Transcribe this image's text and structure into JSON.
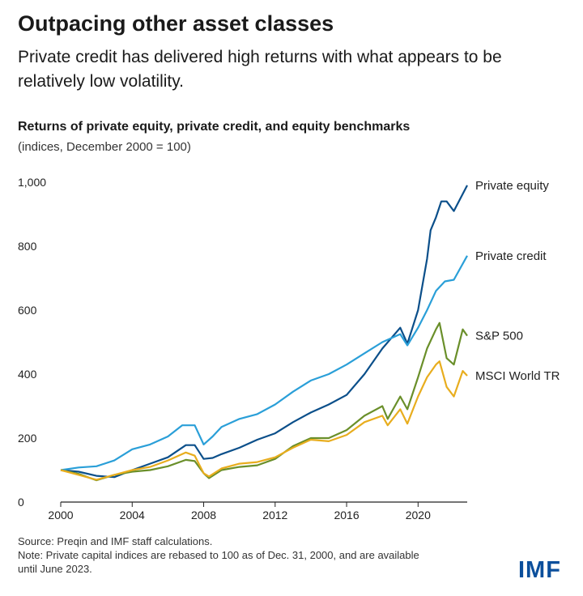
{
  "header": {
    "title": "Outpacing other asset classes",
    "subtitle": "Private credit has delivered high returns with what appears to be relatively low volatility."
  },
  "footer": {
    "source": "Source: Preqin and IMF staff calculations.",
    "note_line1": "Note: Private capital indices are rebased to 100 as of Dec. 31, 2000, and are available",
    "note_line2": "until June 2023.",
    "logo": "IMF"
  },
  "chart_data": {
    "type": "line",
    "title": "Returns of private equity, private credit, and equity benchmarks",
    "subtitle": "(indices, December 2000 = 100)",
    "xlim": [
      2000,
      2022.75
    ],
    "ylim": [
      0,
      1000
    ],
    "x_ticks": [
      "2000",
      "2004",
      "2008",
      "2012",
      "2016",
      "2020"
    ],
    "y_ticks": [
      "0",
      "200",
      "400",
      "600",
      "800",
      "1,000"
    ],
    "grid": false,
    "legend": "inline labels at right end of lines",
    "series": [
      {
        "name": "Private equity",
        "color": "#0b4f8a",
        "points": [
          [
            2000,
            100
          ],
          [
            2001,
            95
          ],
          [
            2002,
            82
          ],
          [
            2003,
            78
          ],
          [
            2004,
            100
          ],
          [
            2005,
            120
          ],
          [
            2006,
            140
          ],
          [
            2007,
            178
          ],
          [
            2007.5,
            178
          ],
          [
            2008,
            135
          ],
          [
            2008.5,
            138
          ],
          [
            2009,
            150
          ],
          [
            2010,
            170
          ],
          [
            2011,
            195
          ],
          [
            2012,
            215
          ],
          [
            2013,
            250
          ],
          [
            2014,
            280
          ],
          [
            2015,
            305
          ],
          [
            2016,
            335
          ],
          [
            2017,
            400
          ],
          [
            2018,
            480
          ],
          [
            2019,
            545
          ],
          [
            2019.4,
            495
          ],
          [
            2020,
            600
          ],
          [
            2020.5,
            760
          ],
          [
            2020.7,
            850
          ],
          [
            2021,
            890
          ],
          [
            2021.3,
            940
          ],
          [
            2021.6,
            940
          ],
          [
            2022,
            910
          ],
          [
            2022.75,
            990
          ]
        ]
      },
      {
        "name": "Private credit",
        "color": "#2a9fd8",
        "points": [
          [
            2000,
            100
          ],
          [
            2001,
            108
          ],
          [
            2002,
            112
          ],
          [
            2003,
            130
          ],
          [
            2004,
            165
          ],
          [
            2005,
            180
          ],
          [
            2006,
            205
          ],
          [
            2006.8,
            240
          ],
          [
            2007.5,
            240
          ],
          [
            2008,
            180
          ],
          [
            2008.5,
            205
          ],
          [
            2009,
            235
          ],
          [
            2010,
            260
          ],
          [
            2011,
            275
          ],
          [
            2012,
            305
          ],
          [
            2013,
            345
          ],
          [
            2014,
            380
          ],
          [
            2015,
            400
          ],
          [
            2016,
            430
          ],
          [
            2017,
            465
          ],
          [
            2018,
            500
          ],
          [
            2019,
            525
          ],
          [
            2019.4,
            490
          ],
          [
            2020,
            545
          ],
          [
            2020.5,
            600
          ],
          [
            2021,
            660
          ],
          [
            2021.5,
            690
          ],
          [
            2022,
            695
          ],
          [
            2022.75,
            770
          ]
        ]
      },
      {
        "name": "S&P 500",
        "color": "#6a8f2a",
        "points": [
          [
            2000,
            100
          ],
          [
            2001,
            88
          ],
          [
            2002,
            68
          ],
          [
            2003,
            85
          ],
          [
            2004,
            95
          ],
          [
            2005,
            100
          ],
          [
            2006,
            112
          ],
          [
            2007,
            132
          ],
          [
            2007.5,
            128
          ],
          [
            2008,
            90
          ],
          [
            2008.3,
            75
          ],
          [
            2009,
            100
          ],
          [
            2010,
            110
          ],
          [
            2011,
            115
          ],
          [
            2012,
            135
          ],
          [
            2013,
            175
          ],
          [
            2014,
            200
          ],
          [
            2015,
            200
          ],
          [
            2016,
            225
          ],
          [
            2017,
            270
          ],
          [
            2018,
            300
          ],
          [
            2018.3,
            260
          ],
          [
            2019,
            330
          ],
          [
            2019.4,
            290
          ],
          [
            2020,
            390
          ],
          [
            2020.5,
            480
          ],
          [
            2021,
            540
          ],
          [
            2021.2,
            560
          ],
          [
            2021.6,
            450
          ],
          [
            2022,
            430
          ],
          [
            2022.5,
            540
          ],
          [
            2022.75,
            520
          ]
        ]
      },
      {
        "name": "MSCI World TR",
        "color": "#e8ad1e",
        "points": [
          [
            2000,
            100
          ],
          [
            2001,
            85
          ],
          [
            2002,
            70
          ],
          [
            2003,
            85
          ],
          [
            2004,
            100
          ],
          [
            2005,
            110
          ],
          [
            2006,
            130
          ],
          [
            2007,
            155
          ],
          [
            2007.5,
            145
          ],
          [
            2008,
            90
          ],
          [
            2008.3,
            80
          ],
          [
            2009,
            105
          ],
          [
            2010,
            120
          ],
          [
            2011,
            125
          ],
          [
            2012,
            140
          ],
          [
            2013,
            170
          ],
          [
            2014,
            195
          ],
          [
            2015,
            190
          ],
          [
            2016,
            210
          ],
          [
            2017,
            250
          ],
          [
            2018,
            270
          ],
          [
            2018.3,
            240
          ],
          [
            2019,
            290
          ],
          [
            2019.4,
            245
          ],
          [
            2020,
            330
          ],
          [
            2020.5,
            390
          ],
          [
            2021,
            430
          ],
          [
            2021.2,
            440
          ],
          [
            2021.6,
            360
          ],
          [
            2022,
            330
          ],
          [
            2022.5,
            410
          ],
          [
            2022.75,
            395
          ]
        ]
      }
    ]
  }
}
